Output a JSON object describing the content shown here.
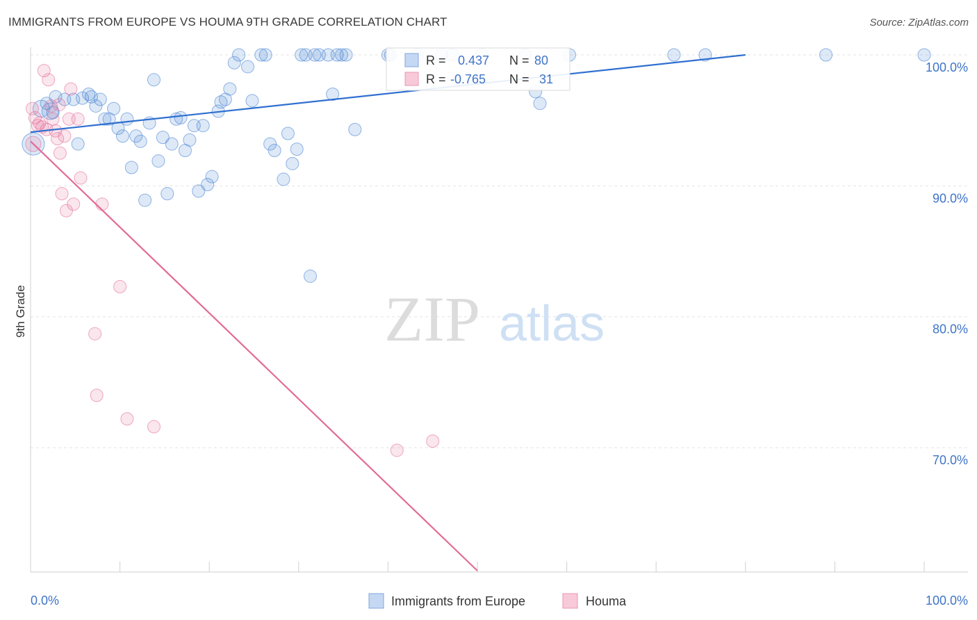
{
  "title": "IMMIGRANTS FROM EUROPE VS HOUMA 9TH GRADE CORRELATION CHART",
  "source": "Source: ZipAtlas.com",
  "watermark": {
    "zip": "ZIP",
    "atlas": "atlas"
  },
  "legend_box": {
    "rows": [
      {
        "r_label": "R =",
        "r_value": "0.437",
        "n_label": "N =",
        "n_value": "80"
      },
      {
        "r_label": "R =",
        "r_value": "-0.765",
        "n_label": "N =",
        "n_value": "31"
      }
    ]
  },
  "colors": {
    "europe": "#4a83d4",
    "europe_fill": "rgba(74,131,212,0.18)",
    "houma": "#e4729c",
    "houma_fill": "rgba(228,114,156,0.18)",
    "tick_text": "#3f74c8",
    "grid": "#e3e3e3"
  },
  "chart_data": {
    "type": "scatter",
    "title": "IMMIGRANTS FROM EUROPE VS HOUMA 9TH GRADE CORRELATION CHART",
    "xlabel": "",
    "ylabel": "9th Grade",
    "xlim": [
      0,
      100
    ],
    "ylim": [
      60.5,
      101
    ],
    "x_tick_labels": [
      "0.0%",
      "100.0%"
    ],
    "y_ticks": [
      70,
      80,
      90,
      100
    ],
    "y_tick_labels": [
      "70.0%",
      "80.0%",
      "90.0%",
      "100.0%"
    ],
    "grid": true,
    "legend_position": "bottom",
    "series": [
      {
        "name": "Immigrants from Europe",
        "r": 0.437,
        "n": 80,
        "trend": {
          "x": [
            0,
            80
          ],
          "y": [
            94.1,
            100.0
          ]
        },
        "points": [
          [
            0.3,
            93.2
          ],
          [
            1.2,
            95.9
          ],
          [
            1.8,
            96.3
          ],
          [
            2.5,
            95.6
          ],
          [
            2.8,
            96.8
          ],
          [
            3.8,
            96.6
          ],
          [
            4.8,
            96.6
          ],
          [
            5.3,
            93.2
          ],
          [
            5.8,
            96.7
          ],
          [
            6.5,
            97.0
          ],
          [
            6.8,
            96.8
          ],
          [
            7.3,
            96.1
          ],
          [
            7.8,
            96.6
          ],
          [
            8.3,
            95.1
          ],
          [
            8.8,
            95.1
          ],
          [
            9.3,
            95.9
          ],
          [
            9.8,
            94.4
          ],
          [
            10.3,
            93.8
          ],
          [
            10.8,
            95.1
          ],
          [
            11.3,
            91.4
          ],
          [
            11.8,
            93.8
          ],
          [
            12.3,
            93.4
          ],
          [
            12.8,
            88.9
          ],
          [
            13.3,
            94.8
          ],
          [
            13.8,
            98.1
          ],
          [
            14.3,
            91.9
          ],
          [
            14.8,
            93.7
          ],
          [
            15.3,
            89.4
          ],
          [
            15.8,
            93.2
          ],
          [
            16.3,
            95.1
          ],
          [
            16.8,
            95.2
          ],
          [
            17.3,
            92.7
          ],
          [
            17.8,
            93.5
          ],
          [
            18.3,
            94.6
          ],
          [
            18.8,
            89.6
          ],
          [
            19.3,
            94.6
          ],
          [
            19.8,
            90.1
          ],
          [
            20.3,
            90.7
          ],
          [
            21.0,
            95.7
          ],
          [
            21.3,
            96.4
          ],
          [
            21.8,
            96.6
          ],
          [
            22.3,
            97.4
          ],
          [
            22.8,
            99.4
          ],
          [
            23.3,
            100.0
          ],
          [
            24.3,
            99.1
          ],
          [
            24.8,
            96.5
          ],
          [
            25.8,
            100.0
          ],
          [
            26.3,
            100.0
          ],
          [
            26.8,
            93.2
          ],
          [
            27.3,
            92.7
          ],
          [
            28.3,
            90.5
          ],
          [
            28.8,
            94.0
          ],
          [
            29.3,
            91.7
          ],
          [
            29.8,
            92.8
          ],
          [
            30.3,
            100.0
          ],
          [
            30.8,
            100.0
          ],
          [
            31.3,
            83.1
          ],
          [
            31.8,
            100.0
          ],
          [
            32.3,
            100.0
          ],
          [
            33.3,
            100.0
          ],
          [
            33.8,
            97.0
          ],
          [
            34.3,
            100.0
          ],
          [
            34.8,
            100.0
          ],
          [
            35.3,
            100.0
          ],
          [
            36.3,
            94.3
          ],
          [
            40.0,
            100.0
          ],
          [
            40.3,
            100.0
          ],
          [
            43.3,
            100.0
          ],
          [
            46.0,
            100.0
          ],
          [
            47.2,
            100.0
          ],
          [
            50.5,
            100.0
          ],
          [
            55.3,
            100.0
          ],
          [
            56.5,
            97.2
          ],
          [
            57.0,
            96.3
          ],
          [
            60.3,
            100.0
          ],
          [
            72.0,
            100.0
          ],
          [
            75.5,
            100.0
          ],
          [
            89.0,
            100.0
          ],
          [
            100.0,
            100.0
          ],
          [
            2.2,
            95.7
          ]
        ]
      },
      {
        "name": "Houma",
        "r": -0.765,
        "n": 31,
        "trend": {
          "x": [
            0,
            50
          ],
          "y": [
            93.4,
            60.6
          ]
        },
        "points": [
          [
            0.2,
            95.9
          ],
          [
            0.3,
            93.2
          ],
          [
            0.5,
            95.2
          ],
          [
            0.8,
            94.6
          ],
          [
            1.0,
            94.8
          ],
          [
            1.3,
            94.5
          ],
          [
            1.5,
            98.8
          ],
          [
            1.8,
            94.3
          ],
          [
            2.0,
            98.1
          ],
          [
            2.3,
            96.1
          ],
          [
            2.5,
            95.1
          ],
          [
            2.8,
            94.2
          ],
          [
            3.0,
            93.6
          ],
          [
            3.3,
            92.5
          ],
          [
            3.5,
            89.4
          ],
          [
            3.8,
            93.8
          ],
          [
            4.0,
            88.1
          ],
          [
            4.3,
            95.1
          ],
          [
            4.5,
            97.4
          ],
          [
            4.8,
            88.6
          ],
          [
            5.3,
            95.1
          ],
          [
            5.6,
            90.6
          ],
          [
            8.0,
            88.6
          ],
          [
            10.0,
            82.3
          ],
          [
            7.2,
            78.7
          ],
          [
            7.4,
            74.0
          ],
          [
            10.8,
            72.2
          ],
          [
            13.8,
            71.6
          ],
          [
            41.0,
            69.8
          ],
          [
            45.0,
            70.5
          ],
          [
            3.2,
            96.2
          ]
        ]
      }
    ]
  },
  "bottom_legend": {
    "europe_label": "Immigrants from Europe",
    "houma_label": "Houma"
  }
}
